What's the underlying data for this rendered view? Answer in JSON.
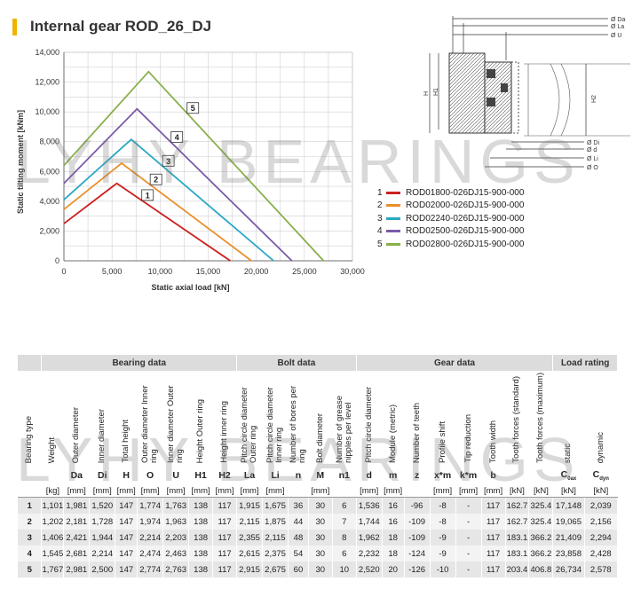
{
  "page": {
    "title": "Internal gear ROD_26_DJ"
  },
  "watermark": "LYHY BEARINGS",
  "chart_data": {
    "type": "line",
    "xlabel": "Static axial load [kN]",
    "ylabel": "Static tilting moment [kNm]",
    "xlim": [
      0,
      30000
    ],
    "ylim": [
      0,
      14000
    ],
    "xticks": [
      "0",
      "5,000",
      "10,000",
      "15,000",
      "20,000",
      "25,000",
      "30,000"
    ],
    "yticks": [
      "0",
      "2,000",
      "4,000",
      "6,000",
      "8,000",
      "10,000",
      "12,000",
      "14,000"
    ],
    "grid": true,
    "legend_position": "right",
    "series": [
      {
        "name": "ROD01800-026DJ15-900-000",
        "label": "1",
        "color": "#cc2020",
        "x": [
          0,
          5500,
          17300
        ],
        "y": [
          2500,
          5200,
          0
        ]
      },
      {
        "name": "ROD02000-026DJ15-900-000",
        "label": "2",
        "color": "#e8902c",
        "x": [
          0,
          6000,
          19500
        ],
        "y": [
          3450,
          6550,
          0
        ]
      },
      {
        "name": "ROD02240-026DJ15-900-000",
        "label": "3",
        "color": "#2aa8c4",
        "x": [
          0,
          7000,
          21800
        ],
        "y": [
          4100,
          8150,
          0
        ]
      },
      {
        "name": "ROD02500-026DJ15-900-000",
        "label": "4",
        "color": "#7a5aa8",
        "x": [
          0,
          7600,
          23700
        ],
        "y": [
          5200,
          10200,
          0
        ]
      },
      {
        "name": "ROD02800-026DJ15-900-000",
        "label": "5",
        "color": "#88b04a",
        "x": [
          0,
          8800,
          27000
        ],
        "y": [
          6400,
          12700,
          0
        ]
      }
    ]
  },
  "drawing": {
    "labels_top": [
      "Ø Da",
      "Ø La",
      "Ø U"
    ],
    "labels_bottom": [
      "Ø Di",
      "Ø d",
      "Ø Li",
      "Ø O"
    ],
    "labels_side": [
      "H",
      "H1",
      "H2"
    ]
  },
  "table": {
    "groups": [
      "Bearing data",
      "Bolt data",
      "Gear data",
      "Load rating"
    ],
    "columns": [
      {
        "label": "Bearing type",
        "symbol": "",
        "unit": ""
      },
      {
        "label": "Weight",
        "symbol": "",
        "unit": "[kg]"
      },
      {
        "label": "Outer diameter",
        "symbol": "Da",
        "unit": "[mm]"
      },
      {
        "label": "Inner diameter",
        "symbol": "Di",
        "unit": "[mm]"
      },
      {
        "label": "Total height",
        "symbol": "H",
        "unit": "[mm]"
      },
      {
        "label": "Outer diameter Inner ring",
        "symbol": "O",
        "unit": "[mm]"
      },
      {
        "label": "Inner diameter Outer ring",
        "symbol": "U",
        "unit": "[mm]"
      },
      {
        "label": "Height Outer ring",
        "symbol": "H1",
        "unit": "[mm]"
      },
      {
        "label": "Height inner ring",
        "symbol": "H2",
        "unit": "[mm]"
      },
      {
        "label": "Pitch circle diameter Outer ring",
        "symbol": "La",
        "unit": "[mm]"
      },
      {
        "label": "Pitch circle diameter Inner ring",
        "symbol": "Li",
        "unit": "[mm]"
      },
      {
        "label": "Number of bores per ring",
        "symbol": "n",
        "unit": ""
      },
      {
        "label": "Bolt diameter",
        "symbol": "M",
        "unit": "[mm]"
      },
      {
        "label": "Number of grease nipples per level",
        "symbol": "n1",
        "unit": ""
      },
      {
        "label": "Pitch circle diameter",
        "symbol": "d",
        "unit": "[mm]"
      },
      {
        "label": "Module (metric)",
        "symbol": "m",
        "unit": "[mm]"
      },
      {
        "label": "Number of teeth",
        "symbol": "z",
        "unit": ""
      },
      {
        "label": "Profile shift",
        "symbol": "x*m",
        "unit": "[mm]"
      },
      {
        "label": "Tip reduction",
        "symbol": "k*m",
        "unit": "[mm]"
      },
      {
        "label": "Tooth width",
        "symbol": "b",
        "unit": "[mm]"
      },
      {
        "label": "Tooth forces (standard)",
        "symbol": "",
        "unit": "[kN]"
      },
      {
        "label": "Tooth forces (maximum)",
        "symbol": "",
        "unit": "[kN]"
      },
      {
        "label": "static",
        "symbol": "C",
        "symsub": "0ax",
        "unit": "[kN]"
      },
      {
        "label": "dynamic",
        "symbol": "C",
        "symsub": "dyn",
        "unit": "[kN]"
      }
    ],
    "rows": [
      [
        "1",
        "1,101",
        "1,981",
        "1,520",
        "147",
        "1,774",
        "1,763",
        "138",
        "117",
        "1,915",
        "1,675",
        "36",
        "30",
        "6",
        "1,536",
        "16",
        "-96",
        "-8",
        "-",
        "117",
        "162.7",
        "325.4",
        "17,148",
        "2,039"
      ],
      [
        "2",
        "1,202",
        "2,181",
        "1,728",
        "147",
        "1,974",
        "1,963",
        "138",
        "117",
        "2,115",
        "1,875",
        "44",
        "30",
        "7",
        "1,744",
        "16",
        "-109",
        "-8",
        "-",
        "117",
        "162.7",
        "325.4",
        "19,065",
        "2,156"
      ],
      [
        "3",
        "1,406",
        "2,421",
        "1,944",
        "147",
        "2,214",
        "2,203",
        "138",
        "117",
        "2,355",
        "2,115",
        "48",
        "30",
        "8",
        "1,962",
        "18",
        "-109",
        "-9",
        "-",
        "117",
        "183.1",
        "366.2",
        "21,409",
        "2,294"
      ],
      [
        "4",
        "1,545",
        "2,681",
        "2,214",
        "147",
        "2,474",
        "2,463",
        "138",
        "117",
        "2,615",
        "2,375",
        "54",
        "30",
        "6",
        "2,232",
        "18",
        "-124",
        "-9",
        "-",
        "117",
        "183.1",
        "366.2",
        "23,858",
        "2,428"
      ],
      [
        "5",
        "1,767",
        "2,981",
        "2,500",
        "147",
        "2,774",
        "2,763",
        "138",
        "117",
        "2,915",
        "2,675",
        "60",
        "30",
        "10",
        "2,520",
        "20",
        "-126",
        "-10",
        "-",
        "117",
        "203.4",
        "406.8",
        "26,734",
        "2,578"
      ]
    ]
  }
}
